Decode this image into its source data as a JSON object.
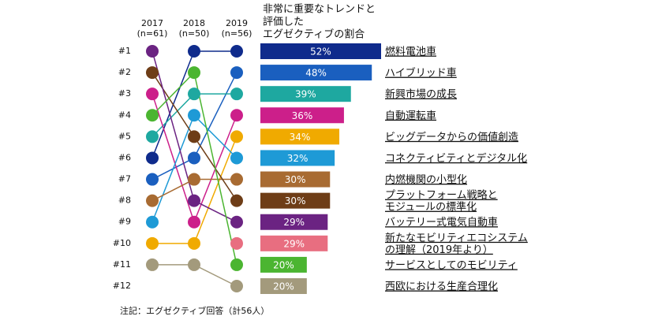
{
  "chart_data": {
    "type": "bump",
    "title": [
      "非常に重要なトレンドと",
      "評価した",
      "エグゼクティブの割合"
    ],
    "categories": [
      "2017",
      "2018",
      "2019"
    ],
    "category_notes": [
      "(n=61)",
      "(n=50)",
      "(n=56)"
    ],
    "ylim": [
      12,
      1
    ],
    "yticks": [
      {
        "value": 1,
        "label": "#1"
      },
      {
        "value": 2,
        "label": "#2"
      },
      {
        "value": 3,
        "label": "#3"
      },
      {
        "value": 4,
        "label": "#4"
      },
      {
        "value": 5,
        "label": "#5"
      },
      {
        "value": 6,
        "label": "#6"
      },
      {
        "value": 7,
        "label": "#7"
      },
      {
        "value": 8,
        "label": "#8"
      },
      {
        "value": 9,
        "label": "#9"
      },
      {
        "value": 10,
        "label": "#10"
      },
      {
        "value": 11,
        "label": "#11"
      },
      {
        "value": 12,
        "label": "#12"
      }
    ],
    "series": [
      {
        "name": [
          "燃料電池車"
        ],
        "color": "#0f2b8c",
        "values": [
          6,
          1,
          1
        ],
        "share": 52,
        "share_label": "52%"
      },
      {
        "name": [
          "ハイブリッド車"
        ],
        "color": "#1a5fbf",
        "values": [
          7,
          6,
          2
        ],
        "share": 48,
        "share_label": "48%"
      },
      {
        "name": [
          "新興市場の成長"
        ],
        "color": "#1ea8a0",
        "values": [
          5,
          3,
          3
        ],
        "share": 39,
        "share_label": "39%"
      },
      {
        "name": [
          "自動運転車"
        ],
        "color": "#cc1f8a",
        "values": [
          3,
          9,
          4
        ],
        "share": 36,
        "share_label": "36%"
      },
      {
        "name": [
          "ビッグデータからの価値創造"
        ],
        "color": "#f0aa00",
        "values": [
          10,
          10,
          5
        ],
        "share": 34,
        "share_label": "34%"
      },
      {
        "name": [
          "コネクティビティとデジタル化"
        ],
        "color": "#1e9ad6",
        "values": [
          9,
          4,
          6
        ],
        "share": 32,
        "share_label": "32%"
      },
      {
        "name": [
          "内燃機関の小型化"
        ],
        "color": "#a86b32",
        "values": [
          8,
          7,
          7
        ],
        "share": 30,
        "share_label": "30%"
      },
      {
        "name": [
          "プラットフォーム戦略と",
          "モジュールの標準化"
        ],
        "color": "#6e3d17",
        "values": [
          2,
          5,
          8
        ],
        "share": 30,
        "share_label": "30%"
      },
      {
        "name": [
          "バッテリー式電気自動車"
        ],
        "color": "#6b2382",
        "values": [
          1,
          8,
          9
        ],
        "share": 29,
        "share_label": "29%"
      },
      {
        "name": [
          "新たなモビリティエコシステム",
          "の理解（2019年より）"
        ],
        "color": "#e86e80",
        "values": [
          null,
          null,
          10
        ],
        "share": 29,
        "share_label": "29%"
      },
      {
        "name": [
          "サービスとしてのモビリティ"
        ],
        "color": "#4bb531",
        "values": [
          4,
          2,
          11
        ],
        "share": 20,
        "share_label": "20%"
      },
      {
        "name": [
          "西欧における生産合理化"
        ],
        "color": "#a39a7c",
        "values": [
          11,
          11,
          12
        ],
        "share": 20,
        "share_label": "20%"
      }
    ],
    "note": "注記：エグゼクティブ回答（計56人）"
  }
}
